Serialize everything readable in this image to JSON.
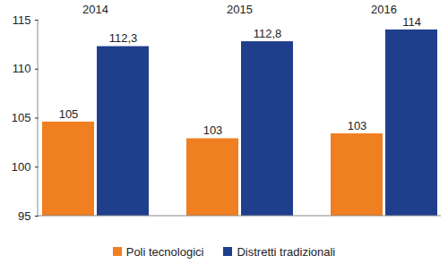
{
  "chart_data": {
    "type": "bar",
    "categories": [
      "2014",
      "2015",
      "2016"
    ],
    "series": [
      {
        "name": "Poli tecnologici",
        "color": "#f07f21",
        "values": [
          104.6,
          102.9,
          103.4
        ],
        "value_labels": [
          "105",
          "103",
          "103"
        ]
      },
      {
        "name": "Distretti tradizionali",
        "color": "#1f3f8c",
        "values": [
          112.3,
          112.8,
          114
        ],
        "value_labels": [
          "112,3",
          "112,8",
          "114"
        ]
      }
    ],
    "ylim": [
      95,
      115
    ],
    "yticks": [
      95,
      100,
      105,
      110,
      115
    ],
    "grid": false,
    "data_labels": true,
    "legend": "bottom"
  }
}
